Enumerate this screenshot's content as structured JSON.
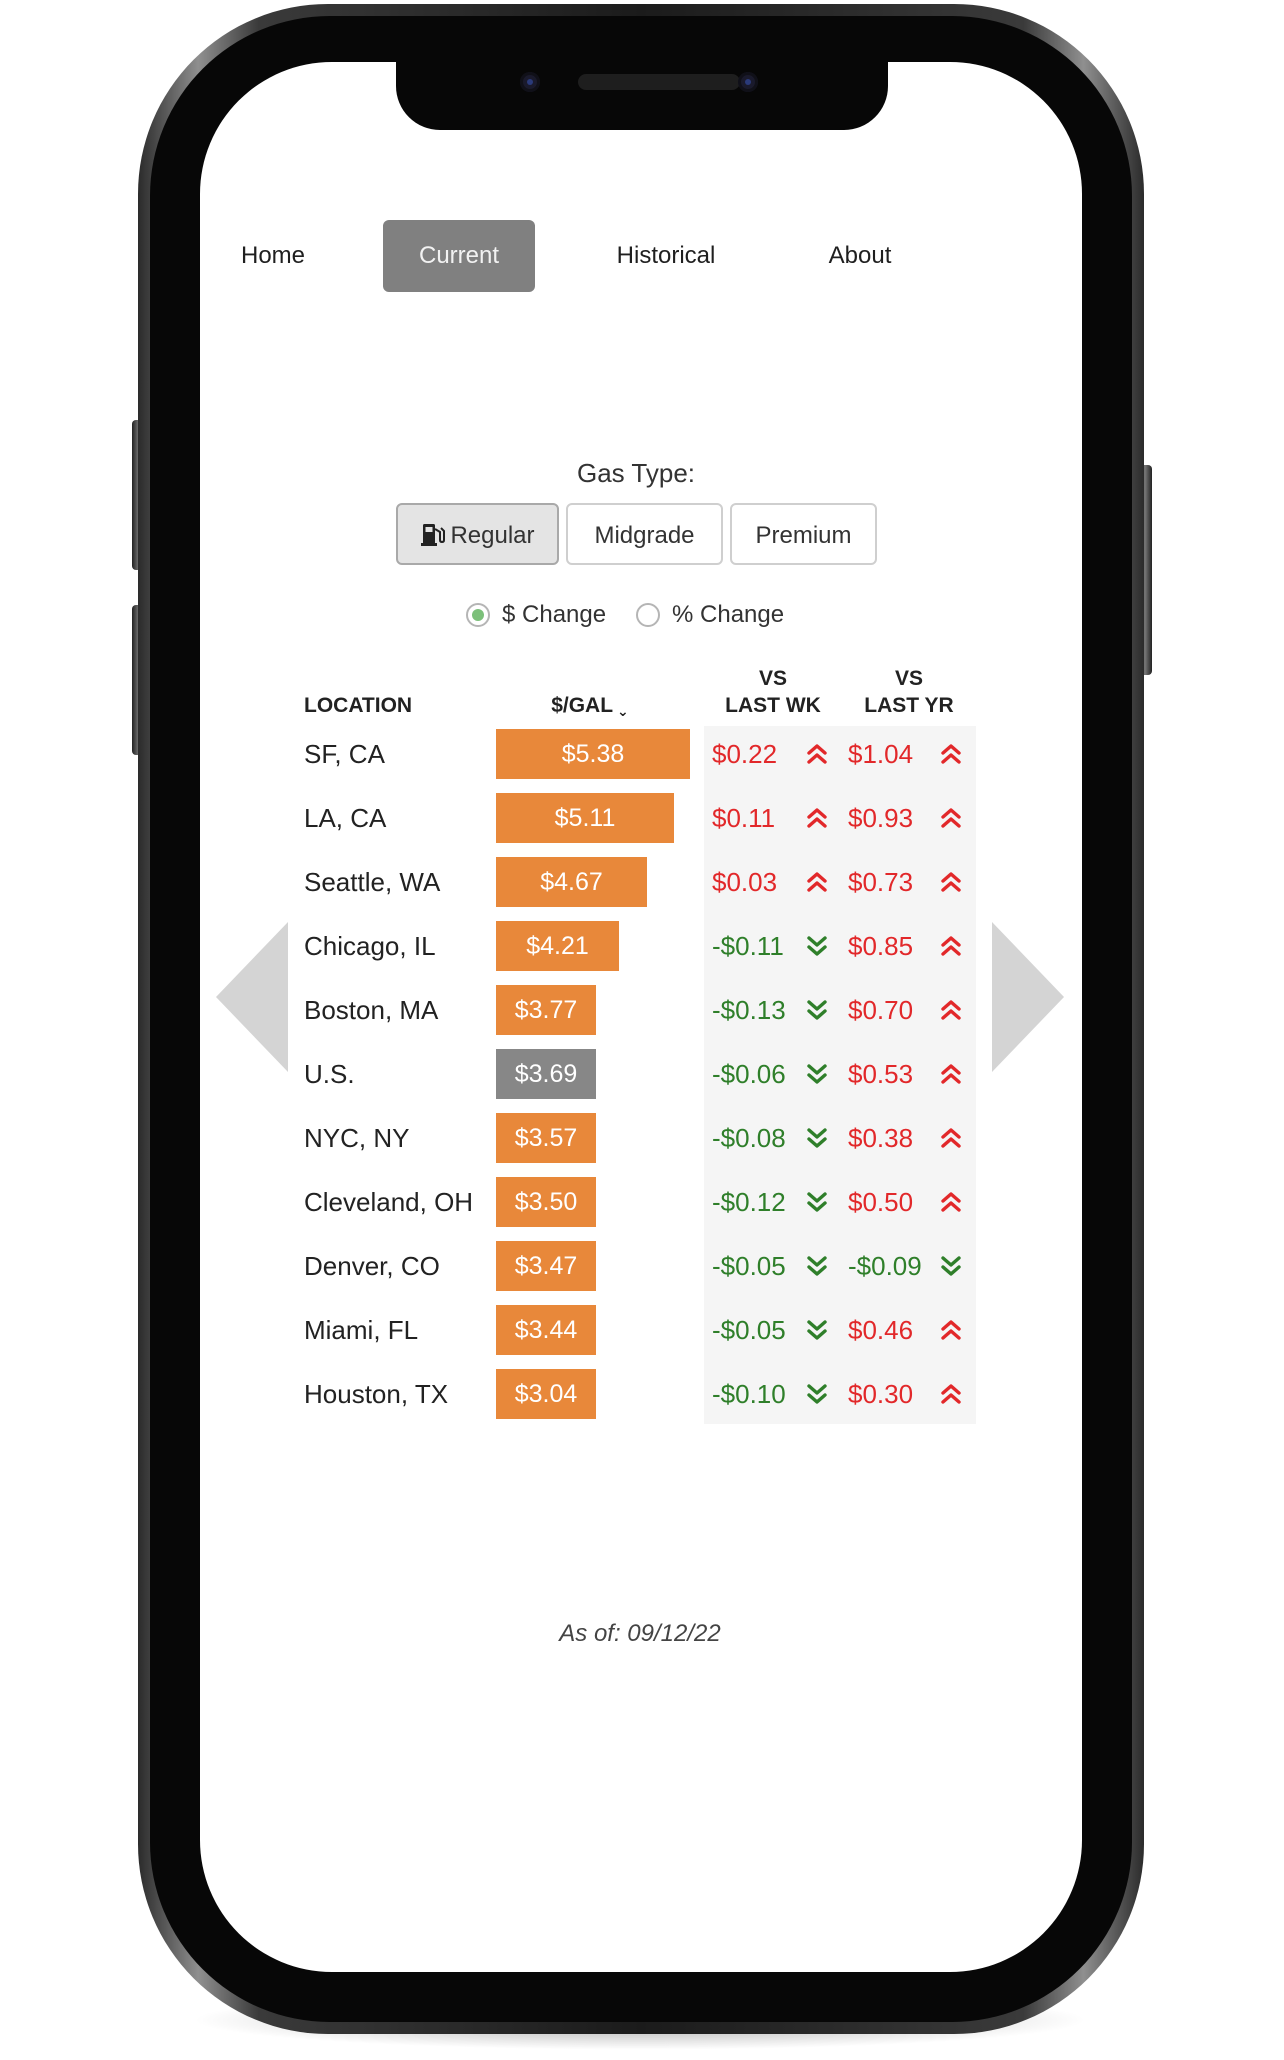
{
  "nav": {
    "items": [
      {
        "label": "Home",
        "active": false
      },
      {
        "label": "Current",
        "active": true
      },
      {
        "label": "Historical",
        "active": false
      },
      {
        "label": "About",
        "active": false
      }
    ]
  },
  "gas_type": {
    "title": "Gas Type:",
    "options": [
      {
        "label": "Regular",
        "selected": true,
        "icon": "gas-pump-icon"
      },
      {
        "label": "Midgrade",
        "selected": false
      },
      {
        "label": "Premium",
        "selected": false
      }
    ]
  },
  "change_mode": {
    "options": [
      {
        "label": "$ Change",
        "selected": true
      },
      {
        "label": "% Change",
        "selected": false
      }
    ]
  },
  "table": {
    "headers": {
      "location": "LOCATION",
      "price": "$/GAL",
      "last_wk_line1": "VS",
      "last_wk_line2": "LAST WK",
      "last_yr_line1": "VS",
      "last_yr_line2": "LAST YR"
    },
    "sort_column": "price",
    "sort_direction": "descending",
    "price_axis_max": 5.38,
    "rows": [
      {
        "location": "SF, CA",
        "price": 5.38,
        "price_label": "$5.38",
        "vs_wk": "$0.22",
        "wk_dir": "up",
        "vs_yr": "$1.04",
        "yr_dir": "up"
      },
      {
        "location": "LA, CA",
        "price": 5.11,
        "price_label": "$5.11",
        "vs_wk": "$0.11",
        "wk_dir": "up",
        "vs_yr": "$0.93",
        "yr_dir": "up"
      },
      {
        "location": "Seattle, WA",
        "price": 4.67,
        "price_label": "$4.67",
        "vs_wk": "$0.03",
        "wk_dir": "up",
        "vs_yr": "$0.73",
        "yr_dir": "up"
      },
      {
        "location": "Chicago, IL",
        "price": 4.21,
        "price_label": "$4.21",
        "vs_wk": "-$0.11",
        "wk_dir": "down",
        "vs_yr": "$0.85",
        "yr_dir": "up"
      },
      {
        "location": "Boston, MA",
        "price": 3.77,
        "price_label": "$3.77",
        "vs_wk": "-$0.13",
        "wk_dir": "down",
        "vs_yr": "$0.70",
        "yr_dir": "up"
      },
      {
        "location": "U.S.",
        "price": 3.69,
        "price_label": "$3.69",
        "vs_wk": "-$0.06",
        "wk_dir": "down",
        "vs_yr": "$0.53",
        "yr_dir": "up",
        "highlight": true
      },
      {
        "location": "NYC, NY",
        "price": 3.57,
        "price_label": "$3.57",
        "vs_wk": "-$0.08",
        "wk_dir": "down",
        "vs_yr": "$0.38",
        "yr_dir": "up"
      },
      {
        "location": "Cleveland, OH",
        "price": 3.5,
        "price_label": "$3.50",
        "vs_wk": "-$0.12",
        "wk_dir": "down",
        "vs_yr": "$0.50",
        "yr_dir": "up"
      },
      {
        "location": "Denver, CO",
        "price": 3.47,
        "price_label": "$3.47",
        "vs_wk": "-$0.05",
        "wk_dir": "down",
        "vs_yr": "-$0.09",
        "yr_dir": "down"
      },
      {
        "location": "Miami, FL",
        "price": 3.44,
        "price_label": "$3.44",
        "vs_wk": "-$0.05",
        "wk_dir": "down",
        "vs_yr": "$0.46",
        "yr_dir": "up"
      },
      {
        "location": "Houston, TX",
        "price": 3.04,
        "price_label": "$3.04",
        "vs_wk": "-$0.10",
        "wk_dir": "down",
        "vs_yr": "$0.30",
        "yr_dir": "up"
      }
    ]
  },
  "carousel": {
    "prev_icon": "chevron-left-icon",
    "next_icon": "chevron-right-icon"
  },
  "as_of": "As of: 09/12/22",
  "colors": {
    "bar": "#e8883a",
    "bar_us": "#878787",
    "up": "#e2282a",
    "down": "#2f7f2a",
    "nav_active": "#808080",
    "change_panel": "#f5f5f5"
  }
}
